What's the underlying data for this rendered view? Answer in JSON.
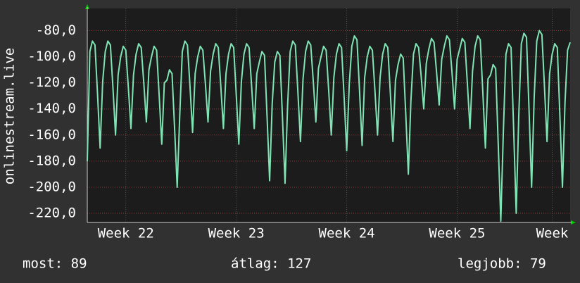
{
  "chart_data": {
    "type": "line",
    "y_label": "onlinestream.live",
    "series": [
      {
        "name": "onlinestream.live",
        "color": "#7fe3b4",
        "values": [
          -180,
          -96,
          -88,
          -91,
          -129,
          -170,
          -119,
          -96,
          -88,
          -91,
          -124,
          -160,
          -114,
          -100,
          -92,
          -95,
          -124,
          -155,
          -114,
          -98,
          -90,
          -93,
          -120,
          -150,
          -110,
          -100,
          -92,
          -95,
          -130,
          -167,
          -120,
          -118,
          -110,
          -113,
          -155,
          -200,
          -145,
          -96,
          -88,
          -91,
          -123,
          -158,
          -113,
          -100,
          -92,
          -95,
          -121,
          -150,
          -111,
          -98,
          -90,
          -93,
          -123,
          -155,
          -113,
          -98,
          -90,
          -93,
          -129,
          -167,
          -119,
          -98,
          -90,
          -93,
          -123,
          -155,
          -113,
          -104,
          -96,
          -99,
          -146,
          -195,
          -136,
          -104,
          -96,
          -99,
          -147,
          -197,
          -137,
          -96,
          -88,
          -91,
          -127,
          -165,
          -117,
          -96,
          -88,
          -91,
          -119,
          -150,
          -109,
          -100,
          -92,
          -95,
          -126,
          -160,
          -116,
          -98,
          -90,
          -93,
          -131,
          -172,
          -121,
          -92,
          -84,
          -87,
          -126,
          -168,
          -116,
          -100,
          -92,
          -95,
          -126,
          -160,
          -116,
          -98,
          -90,
          -93,
          -128,
          -165,
          -118,
          -106,
          -98,
          -101,
          -144,
          -190,
          -134,
          -98,
          -90,
          -93,
          -115,
          -140,
          -105,
          -94,
          -86,
          -89,
          -112,
          -137,
          -102,
          -92,
          -84,
          -87,
          -112,
          -140,
          -102,
          -94,
          -86,
          -89,
          -121,
          -155,
          -111,
          -92,
          -84,
          -87,
          -127,
          -170,
          -117,
          -114,
          -106,
          -109,
          -167,
          -226,
          -157,
          -98,
          -90,
          -93,
          -155,
          -220,
          -145,
          -90,
          -82,
          -85,
          -141,
          -200,
          -131,
          -88,
          -80,
          -83,
          -123,
          -165,
          -113,
          -98,
          -90,
          -93,
          -145,
          -200,
          -135,
          -95,
          -89
        ]
      }
    ],
    "xlim": [
      0,
      188
    ],
    "xticks": [
      {
        "value": 15,
        "label": "Week 22"
      },
      {
        "value": 58,
        "label": "Week 23"
      },
      {
        "value": 101,
        "label": "Week 24"
      },
      {
        "value": 144,
        "label": "Week 25"
      },
      {
        "value": 181,
        "label": "Week"
      }
    ],
    "ylim": [
      -227,
      -63
    ],
    "yticks": [
      {
        "value": -80,
        "label": "-80,0"
      },
      {
        "value": -100,
        "label": "-100,0"
      },
      {
        "value": -120,
        "label": "-120,0"
      },
      {
        "value": -140,
        "label": "-140,0"
      },
      {
        "value": -160,
        "label": "-160,0"
      },
      {
        "value": -180,
        "label": "-180,0"
      },
      {
        "value": -200,
        "label": "-200,0"
      },
      {
        "value": -220,
        "label": "-220,0"
      }
    ],
    "grid": true,
    "summary": [
      "most: 89",
      "átlag: 127",
      "legjobb: 79"
    ]
  }
}
